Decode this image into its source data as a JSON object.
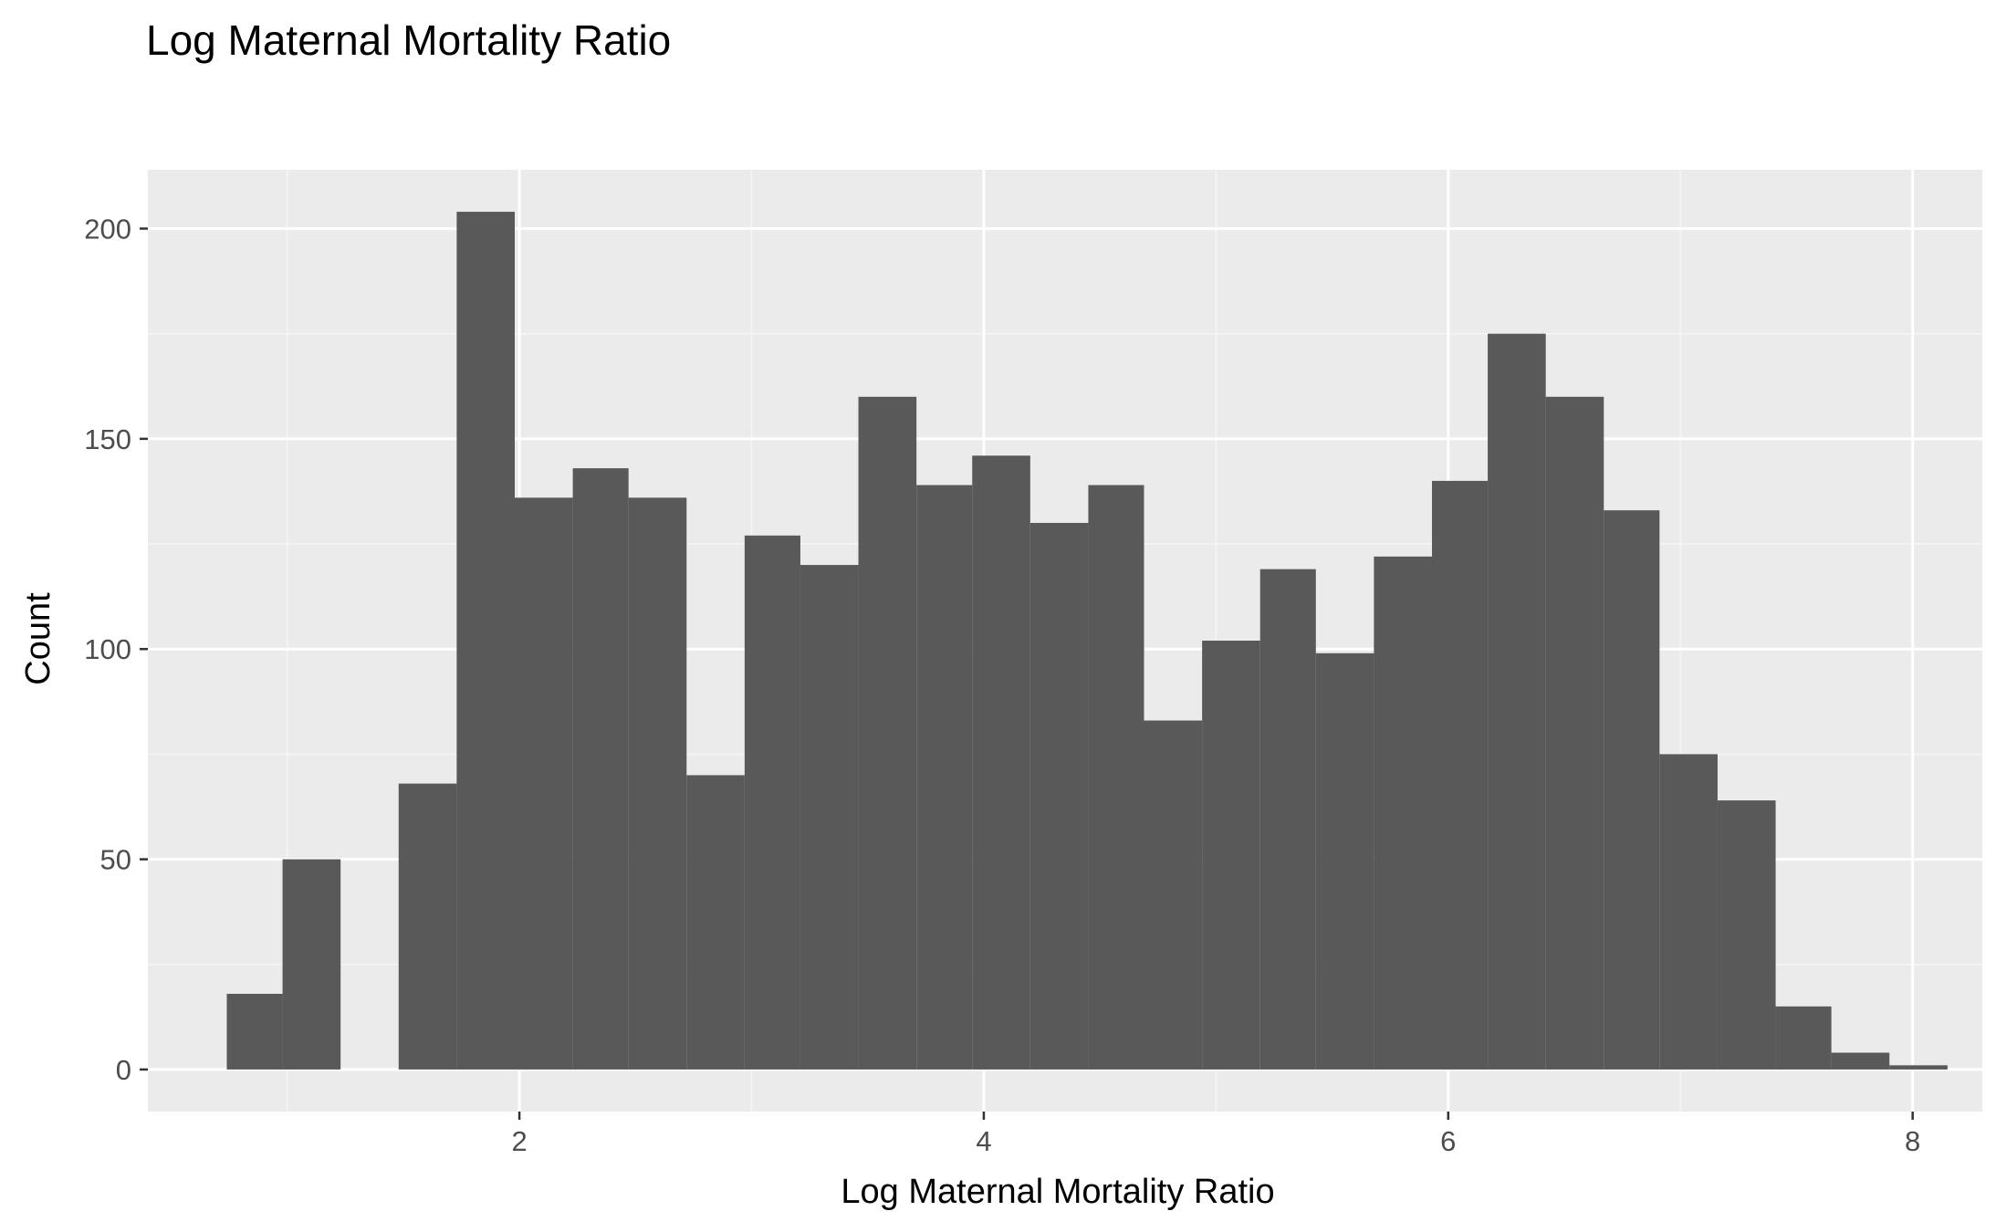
{
  "chart_data": {
    "type": "bar",
    "title": "Log Maternal Mortality Ratio",
    "xlabel": "Log Maternal Mortality Ratio",
    "ylabel": "Count",
    "xlim": [
      0.4,
      8.3
    ],
    "ylim": [
      -10,
      214
    ],
    "x_ticks": [
      2,
      4,
      6,
      8
    ],
    "y_ticks": [
      0,
      50,
      100,
      150,
      200
    ],
    "grid": true,
    "legend": "none",
    "bins": [
      {
        "x0": 0.74,
        "x1": 0.98,
        "count": 18
      },
      {
        "x0": 0.98,
        "x1": 1.23,
        "count": 50
      },
      {
        "x0": 1.23,
        "x1": 1.48,
        "count": 0
      },
      {
        "x0": 1.48,
        "x1": 1.73,
        "count": 68
      },
      {
        "x0": 1.73,
        "x1": 1.98,
        "count": 204
      },
      {
        "x0": 1.98,
        "x1": 2.23,
        "count": 136
      },
      {
        "x0": 2.23,
        "x1": 2.47,
        "count": 143
      },
      {
        "x0": 2.47,
        "x1": 2.72,
        "count": 136
      },
      {
        "x0": 2.72,
        "x1": 2.97,
        "count": 70
      },
      {
        "x0": 2.97,
        "x1": 3.21,
        "count": 127
      },
      {
        "x0": 3.21,
        "x1": 3.46,
        "count": 120
      },
      {
        "x0": 3.46,
        "x1": 3.71,
        "count": 160
      },
      {
        "x0": 3.71,
        "x1": 3.95,
        "count": 139
      },
      {
        "x0": 3.95,
        "x1": 4.2,
        "count": 146
      },
      {
        "x0": 4.2,
        "x1": 4.45,
        "count": 130
      },
      {
        "x0": 4.45,
        "x1": 4.69,
        "count": 139
      },
      {
        "x0": 4.69,
        "x1": 4.94,
        "count": 83
      },
      {
        "x0": 4.94,
        "x1": 5.19,
        "count": 102
      },
      {
        "x0": 5.19,
        "x1": 5.43,
        "count": 119
      },
      {
        "x0": 5.43,
        "x1": 5.68,
        "count": 99
      },
      {
        "x0": 5.68,
        "x1": 5.93,
        "count": 122
      },
      {
        "x0": 5.93,
        "x1": 6.17,
        "count": 140
      },
      {
        "x0": 6.17,
        "x1": 6.42,
        "count": 175
      },
      {
        "x0": 6.42,
        "x1": 6.67,
        "count": 160
      },
      {
        "x0": 6.67,
        "x1": 6.91,
        "count": 133
      },
      {
        "x0": 6.91,
        "x1": 7.16,
        "count": 75
      },
      {
        "x0": 7.16,
        "x1": 7.41,
        "count": 64
      },
      {
        "x0": 7.41,
        "x1": 7.65,
        "count": 15
      },
      {
        "x0": 7.65,
        "x1": 7.9,
        "count": 4
      },
      {
        "x0": 7.9,
        "x1": 8.15,
        "count": 1
      }
    ],
    "colors": {
      "panel": "#ebebeb",
      "grid_major": "#ffffff",
      "grid_minor": "#f5f5f5",
      "bar": "#595959",
      "tick": "#333333",
      "tick_text": "#4d4d4d",
      "text": "#000000"
    }
  }
}
